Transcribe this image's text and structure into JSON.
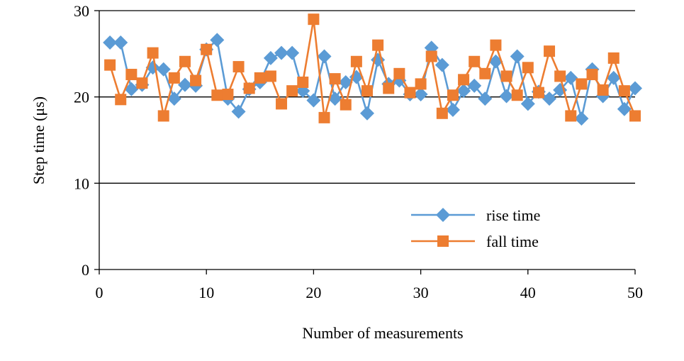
{
  "chart_data": {
    "type": "line",
    "xlabel": "Number of measurements",
    "ylabel": "Step time (μs)",
    "xlim": [
      0,
      50
    ],
    "ylim": [
      0,
      30
    ],
    "xticks": [
      0,
      10,
      20,
      30,
      40,
      50
    ],
    "yticks": [
      0,
      10,
      20,
      30
    ],
    "grid": "horizontal",
    "legend_position": "lower-right",
    "series": [
      {
        "name": "rise time",
        "color": "#5b9bd5",
        "marker": "diamond",
        "x": [
          1,
          2,
          3,
          4,
          5,
          6,
          7,
          8,
          9,
          10,
          11,
          12,
          13,
          14,
          15,
          16,
          17,
          18,
          19,
          20,
          21,
          22,
          23,
          24,
          25,
          26,
          27,
          28,
          29,
          30,
          31,
          32,
          33,
          34,
          35,
          36,
          37,
          38,
          39,
          40,
          41,
          42,
          43,
          44,
          45,
          46,
          47,
          48,
          49,
          50
        ],
        "values": [
          26.3,
          26.3,
          20.9,
          21.4,
          23.4,
          23.2,
          19.8,
          21.4,
          21.3,
          25.5,
          26.6,
          19.8,
          18.3,
          20.9,
          21.7,
          24.5,
          25.1,
          25.1,
          20.7,
          19.6,
          24.7,
          19.8,
          21.7,
          22.3,
          18.1,
          24.3,
          21.5,
          21.9,
          20.3,
          20.3,
          25.7,
          23.7,
          18.5,
          20.7,
          21.3,
          19.8,
          24.1,
          20.1,
          24.7,
          19.2,
          20.6,
          19.8,
          20.8,
          22.2,
          17.5,
          23.2,
          20.1,
          22.2,
          18.6,
          21.0
        ]
      },
      {
        "name": "fall time",
        "color": "#ed7d31",
        "marker": "square",
        "x": [
          1,
          2,
          3,
          4,
          5,
          6,
          7,
          8,
          9,
          10,
          11,
          12,
          13,
          14,
          15,
          16,
          17,
          18,
          19,
          20,
          21,
          22,
          23,
          24,
          25,
          26,
          27,
          28,
          29,
          30,
          31,
          32,
          33,
          34,
          35,
          36,
          37,
          38,
          39,
          40,
          41,
          42,
          43,
          44,
          45,
          46,
          47,
          48,
          49,
          50
        ],
        "values": [
          23.7,
          19.7,
          22.6,
          21.6,
          25.1,
          17.8,
          22.2,
          24.1,
          21.9,
          25.5,
          20.2,
          20.3,
          23.5,
          21.0,
          22.2,
          22.4,
          19.2,
          20.7,
          21.7,
          29.0,
          17.6,
          22.1,
          19.1,
          24.1,
          20.7,
          26.0,
          21.0,
          22.7,
          20.5,
          21.5,
          24.7,
          18.1,
          20.2,
          22.0,
          24.1,
          22.7,
          26.0,
          22.4,
          20.2,
          23.4,
          20.5,
          25.3,
          22.4,
          17.8,
          21.5,
          22.6,
          20.8,
          24.5,
          20.7,
          17.8
        ]
      }
    ]
  }
}
